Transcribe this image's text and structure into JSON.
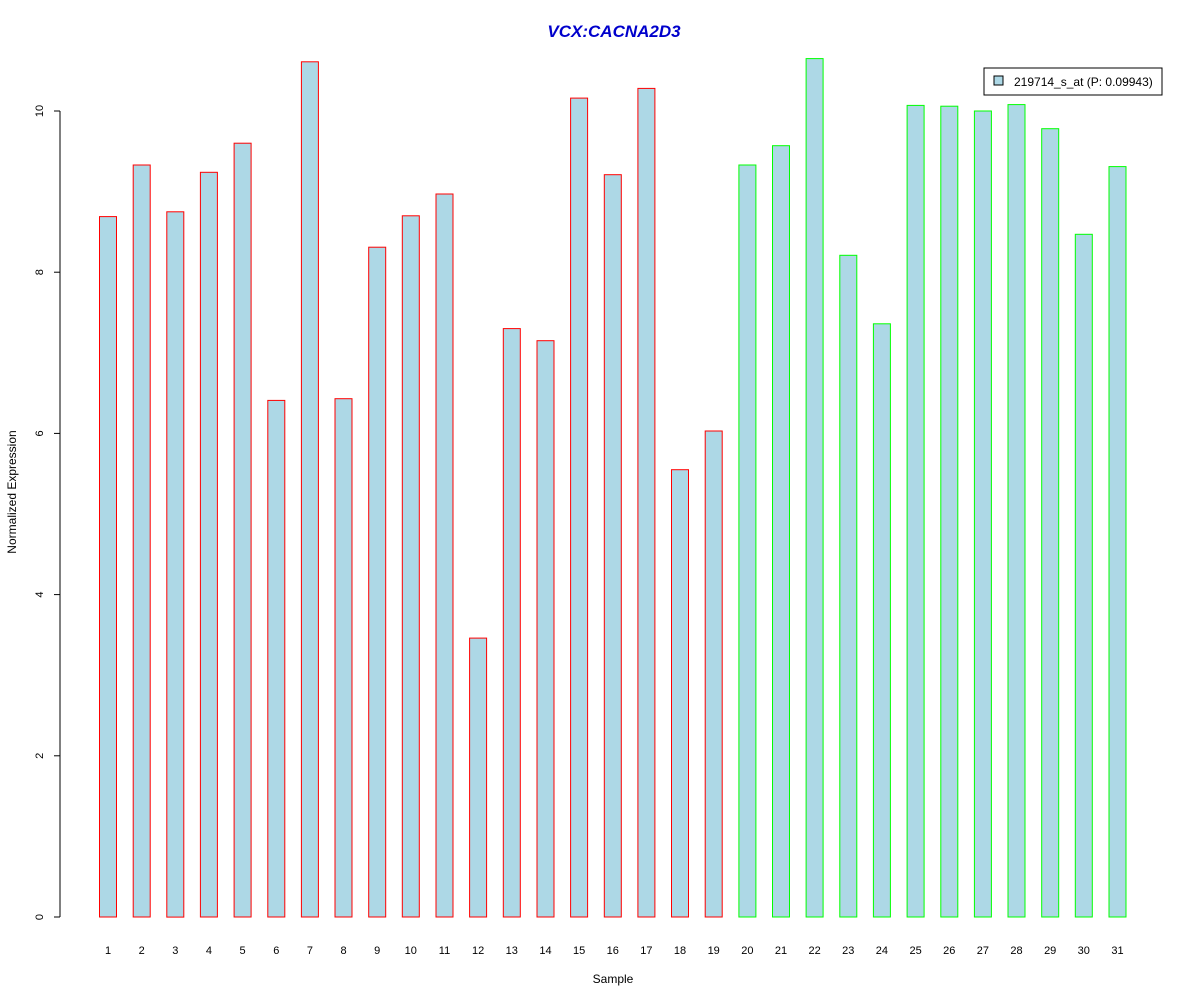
{
  "chart_data": {
    "type": "bar",
    "title": "VCX:CACNA2D3",
    "xlabel": "Sample",
    "ylabel": "Normalized Expression",
    "ylim": [
      0,
      10.6
    ],
    "yticks": [
      0,
      2,
      4,
      6,
      8,
      10
    ],
    "categories": [
      "1",
      "2",
      "3",
      "4",
      "5",
      "6",
      "7",
      "8",
      "9",
      "10",
      "11",
      "12",
      "13",
      "14",
      "15",
      "16",
      "17",
      "18",
      "19",
      "20",
      "21",
      "22",
      "23",
      "24",
      "25",
      "26",
      "27",
      "28",
      "29",
      "30",
      "31"
    ],
    "values": [
      8.69,
      9.33,
      8.75,
      9.24,
      9.6,
      6.41,
      10.61,
      6.43,
      8.31,
      8.7,
      8.97,
      3.46,
      7.3,
      7.15,
      10.16,
      9.21,
      10.28,
      5.55,
      6.03,
      9.33,
      9.57,
      10.65,
      8.21,
      7.36,
      10.07,
      10.06,
      10.0,
      10.08,
      9.78,
      8.47,
      9.31
    ],
    "groups": [
      "red",
      "red",
      "red",
      "red",
      "red",
      "red",
      "red",
      "red",
      "red",
      "red",
      "red",
      "red",
      "red",
      "red",
      "red",
      "red",
      "red",
      "red",
      "red",
      "green",
      "green",
      "green",
      "green",
      "green",
      "green",
      "green",
      "green",
      "green",
      "green",
      "green",
      "green"
    ],
    "legend": {
      "label": "219714_s_at (P: 0.09943)",
      "placement": "top-right"
    },
    "grid": false,
    "colors": {
      "fill": "#add8e6",
      "border_group_1": "#ff0000",
      "border_group_2": "#00ff00",
      "title": "#0000cc"
    }
  }
}
